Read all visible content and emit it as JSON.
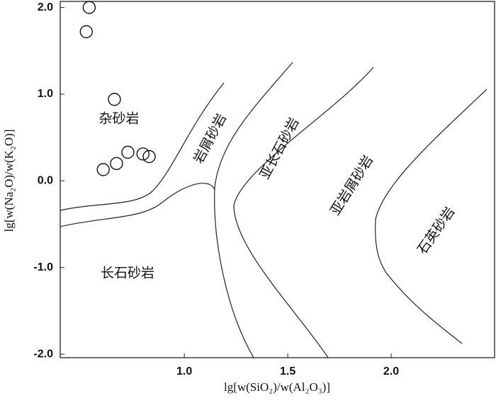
{
  "chart_data": {
    "type": "scatter",
    "x_label": "lg[w(SiO₂)/w(Al₂O₃)]",
    "y_label": "lg[w(Na₂O)/w(K₂O)]",
    "x": [
      0.54,
      0.526,
      0.662,
      0.727,
      0.672,
      0.608,
      0.8,
      0.83
    ],
    "values": [
      2.0,
      1.72,
      0.94,
      0.33,
      0.2,
      0.13,
      0.31,
      0.28
    ],
    "color": "#000000",
    "xlim": [
      0.4,
      2.5
    ],
    "ylim": [
      -2.04,
      2.07
    ],
    "xticks": [
      {
        "value": 1.0,
        "label": "1.0"
      },
      1.5,
      {
        "value": 2.0,
        "label": "2.0"
      }
    ],
    "yticks": [
      {
        "value": 2.0,
        "label": "2.0"
      },
      {
        "value": 1.0,
        "label": "1.0"
      },
      {
        "value": 0.0,
        "label": "0.0"
      },
      {
        "value": -1.0,
        "label": "-1.0"
      },
      {
        "value": -2.0,
        "label": "-2.0"
      }
    ],
    "annotations": [
      "杂砂岩",
      "岩屑砂岩",
      "亚长石砂岩",
      "亚岩屑砂岩",
      "石英砂岩",
      "长石砂岩"
    ]
  }
}
